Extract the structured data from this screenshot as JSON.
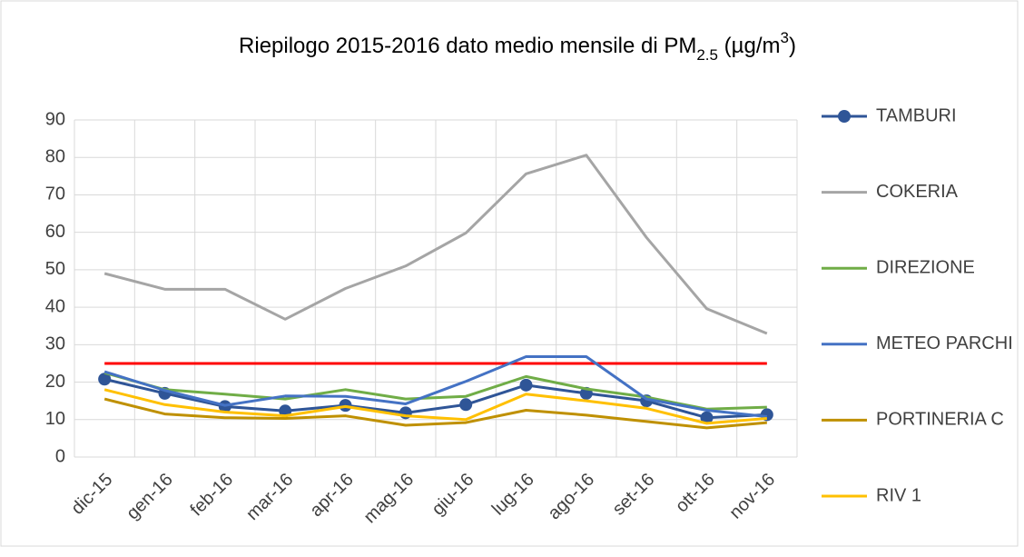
{
  "chart_data": {
    "type": "line",
    "title": [
      "Riepilogo 2015-2016 dato medio mensile di PM",
      "2.5",
      " (µg/m",
      "3",
      ")"
    ],
    "categories": [
      "dic-15",
      "gen-16",
      "feb-16",
      "mar-16",
      "apr-16",
      "mag-16",
      "giu-16",
      "lug-16",
      "ago-16",
      "set-16",
      "ott-16",
      "nov-16"
    ],
    "series": [
      {
        "name": "TAMBURI",
        "color": "#2f5597",
        "marker": "circle",
        "values": [
          20.8,
          17,
          13.5,
          12.3,
          13.8,
          11.8,
          14,
          19.2,
          17,
          15,
          10.5,
          11.3
        ]
      },
      {
        "name": "COKERIA",
        "color": "#a5a5a5",
        "values": [
          49,
          44.8,
          44.8,
          36.8,
          45,
          51,
          59.8,
          75.6,
          80.6,
          58.6,
          39.6,
          33
        ]
      },
      {
        "name": "DIREZIONE",
        "color": "#70ad47",
        "values": [
          22.5,
          18,
          16.8,
          15.5,
          18,
          15.5,
          16.2,
          21.5,
          18.2,
          16,
          12.8,
          13.3
        ]
      },
      {
        "name": "METEO PARCHI",
        "color": "#4472c4",
        "values": [
          22.8,
          17.8,
          13.8,
          16.3,
          16.2,
          14.2,
          20.2,
          26.8,
          26.8,
          15.5,
          12.5,
          10.8
        ]
      },
      {
        "name": "PORTINERIA C",
        "color": "#bf9000",
        "values": [
          15.5,
          11.5,
          10.5,
          10.3,
          11,
          8.5,
          9.2,
          12.5,
          11.2,
          9.5,
          7.8,
          9.2
        ]
      },
      {
        "name": "RIV 1",
        "color": "#ffc000",
        "values": [
          18,
          14,
          12,
          11,
          13.5,
          11,
          10,
          16.8,
          15,
          13,
          9,
          10.3
        ]
      }
    ],
    "reference_line": {
      "value": 25,
      "color": "#ff0000"
    },
    "ylim": [
      0,
      90
    ],
    "yticks": [
      0,
      10,
      20,
      30,
      40,
      50,
      60,
      70,
      80,
      90
    ],
    "grid": true
  }
}
